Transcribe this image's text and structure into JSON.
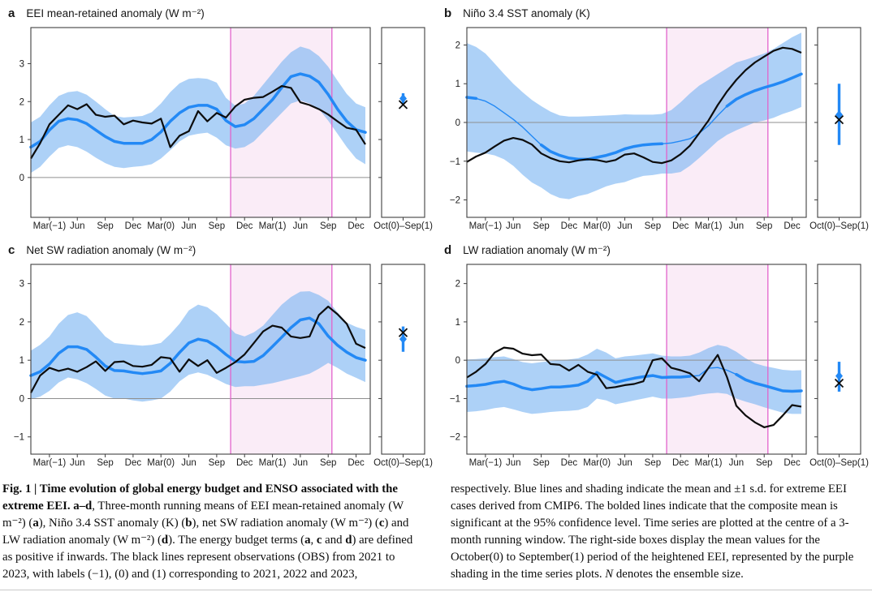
{
  "figure": {
    "colors": {
      "blue": "#2389f5",
      "band_fill": "#7ab4f2",
      "band_opacity": 0.62,
      "pink_fill": "#faecf7",
      "magenta": "#e263cb",
      "black_line": "#0d0d0d",
      "zero_line": "#8f8f8f",
      "axis_border": "#3f3f3f",
      "tick_text": "#1c1c1c"
    },
    "x_axis": {
      "n_points": 37,
      "x_start": "Jan(−1)",
      "x_end": "Jan(2)",
      "tick_indices": [
        2,
        5,
        8,
        11,
        14,
        17,
        20,
        23,
        26,
        29,
        32,
        35
      ],
      "tick_labels": [
        "Mar(−1)",
        "Jun",
        "Sep",
        "Dec",
        "Mar(0)",
        "Jun",
        "Sep",
        "Dec",
        "Mar(1)",
        "Jun",
        "Sep",
        "Dec"
      ],
      "highlight_start": 21.5,
      "highlight_end": 32.4,
      "side_label": "Oct(0)–Sep(1)"
    },
    "caption": {
      "col1": [
        {
          "t": "Fig. 1 | Time evolution of global energy budget and ENSO associated with the extreme EEI. ",
          "s": "b"
        },
        {
          "t": "a–d",
          "s": "b"
        },
        {
          "t": ", Three-month running means of EEI mean-retained anomaly (W m⁻²) (",
          "s": "r"
        },
        {
          "t": "a",
          "s": "b"
        },
        {
          "t": "), Niño 3.4 SST anomaly (K) (",
          "s": "r"
        },
        {
          "t": "b",
          "s": "b"
        },
        {
          "t": "), net SW radiation anomaly (W m⁻²) (",
          "s": "r"
        },
        {
          "t": "c",
          "s": "b"
        },
        {
          "t": ") and LW radiation anomaly (W m⁻²) (",
          "s": "r"
        },
        {
          "t": "d",
          "s": "b"
        },
        {
          "t": "). The energy budget terms (",
          "s": "r"
        },
        {
          "t": "a",
          "s": "b"
        },
        {
          "t": ", ",
          "s": "r"
        },
        {
          "t": "c",
          "s": "b"
        },
        {
          "t": " and ",
          "s": "r"
        },
        {
          "t": "d",
          "s": "b"
        },
        {
          "t": ") are defined as positive if inwards. The black lines represent observations (OBS) from 2021 to 2023, with labels (−1), (0) and (1) corresponding to 2021, 2022 and 2023,",
          "s": "r"
        }
      ],
      "col2": [
        {
          "t": "respectively. Blue lines and shading indicate the mean and ±1 s.d. for extreme EEI cases derived from CMIP6. The bolded lines indicate that the composite mean is significant at the 95% confidence level. Time series are plotted at the centre of a 3-month running window. The right-side boxes display the mean values for the October(0) to September(1) period of the heightened EEI, represented by the purple shading in the time series plots. ",
          "s": "r"
        },
        {
          "t": "N",
          "s": "i"
        },
        {
          "t": " denotes the ensemble size.",
          "s": "r"
        }
      ]
    }
  },
  "chart_data": [
    {
      "id": "a",
      "letter": "a",
      "type": "line",
      "title": "EEI mean-retained anomaly (W m⁻²)",
      "ylim": [
        -1.05,
        3.95
      ],
      "yticks": [
        0,
        1,
        2,
        3
      ],
      "series": [
        {
          "name": "OBS (black)",
          "values": [
            0.5,
            0.9,
            1.4,
            1.65,
            1.9,
            1.8,
            1.93,
            1.65,
            1.6,
            1.63,
            1.4,
            1.5,
            1.45,
            1.42,
            1.55,
            0.8,
            1.1,
            1.22,
            1.75,
            1.48,
            1.7,
            1.58,
            1.87,
            2.05,
            2.1,
            2.12,
            2.26,
            2.41,
            2.36,
            1.98,
            1.91,
            1.8,
            1.66,
            1.48,
            1.31,
            1.26,
            0.87
          ]
        },
        {
          "name": "CMIP6 composite mean (blue)",
          "values": [
            0.8,
            0.95,
            1.25,
            1.48,
            1.55,
            1.52,
            1.42,
            1.25,
            1.08,
            0.95,
            0.9,
            0.9,
            0.9,
            1.0,
            1.2,
            1.48,
            1.7,
            1.85,
            1.9,
            1.9,
            1.8,
            1.5,
            1.34,
            1.39,
            1.55,
            1.8,
            2.05,
            2.37,
            2.66,
            2.73,
            2.67,
            2.51,
            2.19,
            1.8,
            1.48,
            1.26,
            1.19
          ]
        },
        {
          "name": "+1 s.d.",
          "values": [
            1.45,
            1.6,
            1.9,
            2.15,
            2.25,
            2.28,
            2.18,
            2.0,
            1.8,
            1.62,
            1.58,
            1.6,
            1.62,
            1.72,
            1.95,
            2.25,
            2.48,
            2.6,
            2.62,
            2.6,
            2.5,
            2.1,
            1.89,
            1.95,
            2.15,
            2.45,
            2.75,
            3.05,
            3.3,
            3.45,
            3.38,
            3.2,
            2.92,
            2.55,
            2.2,
            1.95,
            1.85
          ]
        },
        {
          "name": "−1 s.d.",
          "values": [
            0.12,
            0.28,
            0.55,
            0.78,
            0.85,
            0.8,
            0.68,
            0.52,
            0.38,
            0.28,
            0.25,
            0.28,
            0.3,
            0.35,
            0.5,
            0.72,
            0.95,
            1.1,
            1.15,
            1.18,
            1.05,
            0.85,
            0.76,
            0.8,
            0.95,
            1.2,
            1.45,
            1.7,
            1.95,
            2.03,
            1.95,
            1.8,
            1.5,
            1.15,
            0.8,
            0.5,
            0.35
          ]
        }
      ],
      "bold_segments": [
        [
          0,
          36
        ]
      ],
      "side_box": {
        "label": "Oct(0)–Sep(1)",
        "cmip6_mean": 2.08,
        "sd_range": [
          1.93,
          2.22
        ],
        "obs": 1.92
      }
    },
    {
      "id": "b",
      "letter": "b",
      "type": "line",
      "title": "Niño 3.4 SST anomaly (K)",
      "ylim": [
        -2.45,
        2.45
      ],
      "yticks": [
        -2,
        -1,
        0,
        1,
        2
      ],
      "series": [
        {
          "name": "OBS (black)",
          "values": [
            -1.02,
            -0.88,
            -0.78,
            -0.62,
            -0.47,
            -0.4,
            -0.45,
            -0.57,
            -0.8,
            -0.92,
            -1.0,
            -1.03,
            -0.98,
            -0.95,
            -0.97,
            -1.02,
            -0.97,
            -0.83,
            -0.8,
            -0.9,
            -1.02,
            -1.05,
            -0.98,
            -0.82,
            -0.6,
            -0.28,
            0.05,
            0.45,
            0.8,
            1.1,
            1.35,
            1.55,
            1.7,
            1.85,
            1.93,
            1.9,
            1.8
          ]
        },
        {
          "name": "CMIP6 composite mean (blue)",
          "values": [
            0.65,
            0.62,
            0.55,
            0.42,
            0.25,
            0.08,
            -0.12,
            -0.35,
            -0.58,
            -0.75,
            -0.85,
            -0.92,
            -0.95,
            -0.95,
            -0.9,
            -0.85,
            -0.78,
            -0.68,
            -0.62,
            -0.58,
            -0.56,
            -0.55,
            -0.53,
            -0.48,
            -0.42,
            -0.28,
            -0.08,
            0.18,
            0.42,
            0.6,
            0.72,
            0.82,
            0.9,
            0.97,
            1.05,
            1.15,
            1.25
          ]
        },
        {
          "name": "+1 s.d.",
          "values": [
            2.05,
            1.95,
            1.78,
            1.52,
            1.25,
            1.0,
            0.78,
            0.58,
            0.42,
            0.28,
            0.18,
            0.15,
            0.15,
            0.16,
            0.17,
            0.18,
            0.19,
            0.21,
            0.2,
            0.2,
            0.2,
            0.22,
            0.32,
            0.52,
            0.75,
            0.95,
            1.1,
            1.25,
            1.4,
            1.55,
            1.62,
            1.7,
            1.78,
            1.9,
            2.05,
            2.2,
            2.32
          ]
        },
        {
          "name": "−1 s.d.",
          "values": [
            -0.75,
            -0.78,
            -0.8,
            -0.85,
            -0.95,
            -1.12,
            -1.35,
            -1.55,
            -1.68,
            -1.85,
            -1.95,
            -1.98,
            -1.9,
            -1.85,
            -1.75,
            -1.65,
            -1.58,
            -1.54,
            -1.45,
            -1.38,
            -1.36,
            -1.32,
            -1.32,
            -1.28,
            -1.12,
            -0.92,
            -0.7,
            -0.48,
            -0.32,
            -0.2,
            -0.1,
            0.0,
            0.05,
            0.12,
            0.22,
            0.3,
            0.4
          ]
        }
      ],
      "bold_segments": [
        [
          0,
          1
        ],
        [
          8,
          21
        ],
        [
          28,
          36
        ]
      ],
      "side_box": {
        "label": "Oct(0)–Sep(1)",
        "cmip6_mean": 0.2,
        "sd_range": [
          -0.58,
          1.0
        ],
        "obs": 0.07
      }
    },
    {
      "id": "c",
      "letter": "c",
      "type": "line",
      "title": "Net SW radiation anomaly (W m⁻²)",
      "ylim": [
        -1.45,
        3.5
      ],
      "yticks": [
        -1,
        0,
        1,
        2,
        3
      ],
      "series": [
        {
          "name": "OBS (black)",
          "values": [
            0.15,
            0.6,
            0.8,
            0.72,
            0.78,
            0.7,
            0.82,
            0.97,
            0.72,
            0.95,
            0.97,
            0.85,
            0.83,
            0.88,
            1.08,
            1.05,
            0.7,
            1.02,
            0.85,
            1.0,
            0.67,
            0.8,
            0.95,
            1.15,
            1.45,
            1.75,
            1.9,
            1.85,
            1.62,
            1.58,
            1.62,
            2.18,
            2.4,
            2.2,
            1.95,
            1.43,
            1.32
          ]
        },
        {
          "name": "CMIP6 composite mean (blue)",
          "values": [
            0.6,
            0.7,
            0.9,
            1.18,
            1.35,
            1.35,
            1.28,
            1.08,
            0.85,
            0.73,
            0.72,
            0.68,
            0.65,
            0.68,
            0.72,
            0.92,
            1.2,
            1.45,
            1.55,
            1.5,
            1.35,
            1.15,
            0.97,
            0.95,
            0.97,
            1.12,
            1.36,
            1.6,
            1.85,
            2.05,
            2.1,
            1.95,
            1.63,
            1.39,
            1.21,
            1.07,
            1.0
          ]
        },
        {
          "name": "+1 s.d.",
          "values": [
            1.25,
            1.4,
            1.62,
            1.95,
            2.18,
            2.25,
            2.15,
            1.9,
            1.62,
            1.45,
            1.42,
            1.4,
            1.38,
            1.4,
            1.45,
            1.68,
            1.95,
            2.3,
            2.45,
            2.38,
            2.2,
            1.95,
            1.7,
            1.62,
            1.73,
            1.9,
            2.18,
            2.45,
            2.65,
            2.79,
            2.8,
            2.7,
            2.55,
            2.25,
            1.98,
            1.87,
            1.79
          ]
        },
        {
          "name": "−1 s.d.",
          "values": [
            -0.02,
            0.05,
            0.2,
            0.42,
            0.55,
            0.5,
            0.4,
            0.25,
            0.08,
            0.0,
            0.0,
            -0.05,
            -0.08,
            -0.05,
            0.0,
            0.18,
            0.45,
            0.62,
            0.68,
            0.62,
            0.5,
            0.38,
            0.3,
            0.32,
            0.32,
            0.36,
            0.4,
            0.46,
            0.52,
            0.58,
            0.65,
            0.78,
            0.93,
            0.8,
            0.65,
            0.54,
            0.43
          ]
        }
      ],
      "bold_segments": [
        [
          0,
          36
        ]
      ],
      "side_box": {
        "label": "Oct(0)–Sep(1)",
        "cmip6_mean": 1.55,
        "sd_range": [
          1.22,
          1.88
        ],
        "obs": 1.72
      }
    },
    {
      "id": "d",
      "letter": "d",
      "type": "line",
      "title": "LW radiation anomaly (W m⁻²)",
      "ylim": [
        -2.45,
        2.5
      ],
      "yticks": [
        -2,
        -1,
        0,
        1,
        2
      ],
      "series": [
        {
          "name": "OBS (black)",
          "values": [
            -0.45,
            -0.3,
            -0.1,
            0.2,
            0.33,
            0.3,
            0.17,
            0.13,
            0.15,
            -0.1,
            -0.12,
            -0.27,
            -0.12,
            -0.3,
            -0.38,
            -0.73,
            -0.7,
            -0.65,
            -0.62,
            -0.55,
            0.0,
            0.05,
            -0.2,
            -0.26,
            -0.34,
            -0.55,
            -0.2,
            0.14,
            -0.44,
            -1.19,
            -1.44,
            -1.62,
            -1.75,
            -1.69,
            -1.44,
            -1.17,
            -1.21
          ]
        },
        {
          "name": "CMIP6 composite mean (blue)",
          "values": [
            -0.68,
            -0.66,
            -0.63,
            -0.58,
            -0.55,
            -0.62,
            -0.72,
            -0.77,
            -0.74,
            -0.7,
            -0.7,
            -0.68,
            -0.65,
            -0.55,
            -0.32,
            -0.45,
            -0.58,
            -0.52,
            -0.47,
            -0.43,
            -0.4,
            -0.45,
            -0.44,
            -0.44,
            -0.42,
            -0.4,
            -0.21,
            -0.19,
            -0.26,
            -0.37,
            -0.51,
            -0.6,
            -0.66,
            -0.73,
            -0.8,
            -0.81,
            -0.8
          ]
        },
        {
          "name": "+1 s.d.",
          "values": [
            0.02,
            0.03,
            0.05,
            0.08,
            0.1,
            0.03,
            -0.05,
            -0.08,
            -0.05,
            -0.02,
            0.0,
            0.02,
            0.05,
            0.15,
            0.3,
            0.2,
            0.05,
            0.1,
            0.12,
            0.15,
            0.18,
            0.12,
            0.1,
            0.1,
            0.12,
            0.2,
            0.32,
            0.4,
            0.35,
            0.22,
            0.05,
            -0.08,
            -0.15,
            -0.2,
            -0.25,
            -0.27,
            -0.26
          ]
        },
        {
          "name": "−1 s.d.",
          "values": [
            -1.35,
            -1.33,
            -1.3,
            -1.25,
            -1.22,
            -1.28,
            -1.35,
            -1.4,
            -1.38,
            -1.35,
            -1.33,
            -1.32,
            -1.3,
            -1.22,
            -1.0,
            -1.05,
            -1.15,
            -1.1,
            -1.05,
            -1.0,
            -0.95,
            -1.0,
            -1.0,
            -0.98,
            -0.95,
            -0.9,
            -0.87,
            -0.85,
            -0.88,
            -1.0,
            -1.08,
            -1.15,
            -1.23,
            -1.3,
            -1.37,
            -1.4,
            -1.4
          ]
        }
      ],
      "bold_segments": [
        [
          0,
          24
        ],
        [
          29,
          36
        ]
      ],
      "side_box": {
        "label": "Oct(0)–Sep(1)",
        "cmip6_mean": -0.41,
        "sd_range": [
          -0.82,
          -0.04
        ],
        "obs": -0.6
      }
    }
  ]
}
